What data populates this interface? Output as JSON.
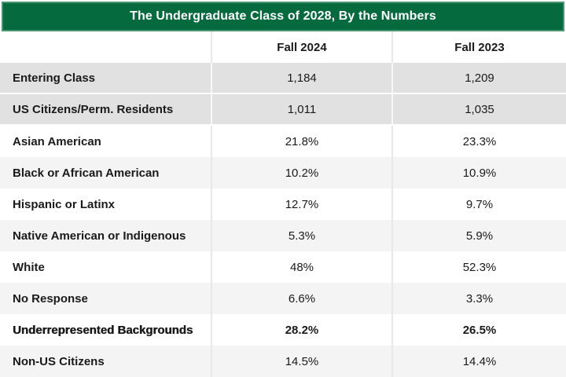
{
  "title_bar": {
    "text": "The Undergraduate Class of 2028, By the Numbers"
  },
  "colors": {
    "title_green": "#056a3e",
    "title_text": "#ffffff",
    "row_gray": "#e1e1e1",
    "row_light": "#f4f4f4",
    "row_white": "#ffffff",
    "body_text": "#1a1a1a"
  },
  "chart_data": {
    "type": "table",
    "title": "The Undergraduate Class of 2028, By the Numbers",
    "columns": [
      "",
      "Fall 2024",
      "Fall 2023"
    ],
    "rows": [
      {
        "label": "Entering Class",
        "fall2024": "1,184",
        "fall2023": "1,209",
        "shade": "gray",
        "bold": false
      },
      {
        "label": "US Citizens/Perm. Residents",
        "fall2024": "1,011",
        "fall2023": "1,035",
        "shade": "gray",
        "bold": false
      },
      {
        "label": "Asian American",
        "fall2024": "21.8%",
        "fall2023": "23.3%",
        "shade": "white",
        "bold": false
      },
      {
        "label": "Black or African American",
        "fall2024": "10.2%",
        "fall2023": "10.9%",
        "shade": "light",
        "bold": false
      },
      {
        "label": "Hispanic or Latinx",
        "fall2024": "12.7%",
        "fall2023": "9.7%",
        "shade": "white",
        "bold": false
      },
      {
        "label": "Native American or Indigenous",
        "fall2024": "5.3%",
        "fall2023": "5.9%",
        "shade": "light",
        "bold": false
      },
      {
        "label": "White",
        "fall2024": "48%",
        "fall2023": "52.3%",
        "shade": "white",
        "bold": false
      },
      {
        "label": "No Response",
        "fall2024": "6.6%",
        "fall2023": "3.3%",
        "shade": "light",
        "bold": false
      },
      {
        "label": "Underrepresented Backgrounds",
        "fall2024": "28.2%",
        "fall2023": "26.5%",
        "shade": "white",
        "bold": true
      },
      {
        "label": "Non-US Citizens",
        "fall2024": "14.5%",
        "fall2023": "14.4%",
        "shade": "light",
        "bold": false
      }
    ]
  }
}
